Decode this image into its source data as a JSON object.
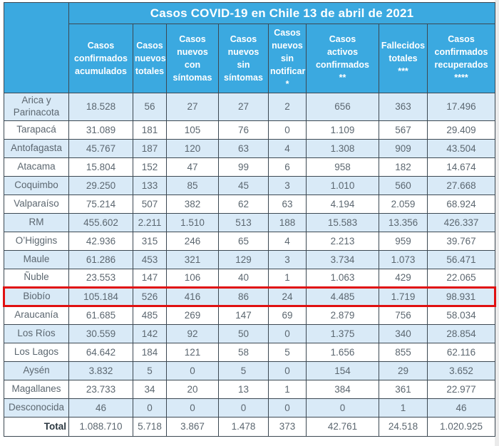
{
  "page": {
    "title": "Casos COVID-19 en Chile 13 de abril de 2021"
  },
  "chart_data": {
    "type": "table",
    "title": "Casos COVID-19 en Chile 13 de abril de 2021",
    "region_column_header": "",
    "columns": [
      "Casos\nconfirmados\nacumulados",
      "Casos\nnuevos\ntotales",
      "Casos\nnuevos\ncon\nsíntomas",
      "Casos\nnuevos\nsin\nsíntomas",
      "Casos\nnuevos\nsin\nnotificar\n*",
      "Casos\nactivos\nconfirmados\n**",
      "Fallecidos\ntotales\n***",
      "Casos\nconfirmados\nrecuperados\n****"
    ],
    "rows": [
      {
        "region": "Arica y Parinacota",
        "values": [
          "18.528",
          "56",
          "27",
          "27",
          "2",
          "656",
          "363",
          "17.496"
        ],
        "highlighted": false
      },
      {
        "region": "Tarapacá",
        "values": [
          "31.089",
          "181",
          "105",
          "76",
          "0",
          "1.109",
          "567",
          "29.409"
        ],
        "highlighted": false
      },
      {
        "region": "Antofagasta",
        "values": [
          "45.767",
          "187",
          "120",
          "63",
          "4",
          "1.308",
          "909",
          "43.504"
        ],
        "highlighted": false
      },
      {
        "region": "Atacama",
        "values": [
          "15.804",
          "152",
          "47",
          "99",
          "6",
          "958",
          "182",
          "14.674"
        ],
        "highlighted": false
      },
      {
        "region": "Coquimbo",
        "values": [
          "29.250",
          "133",
          "85",
          "45",
          "3",
          "1.010",
          "560",
          "27.668"
        ],
        "highlighted": false
      },
      {
        "region": "Valparaíso",
        "values": [
          "75.214",
          "507",
          "382",
          "62",
          "63",
          "4.194",
          "2.059",
          "68.924"
        ],
        "highlighted": false
      },
      {
        "region": "RM",
        "values": [
          "455.602",
          "2.211",
          "1.510",
          "513",
          "188",
          "15.583",
          "13.356",
          "426.337"
        ],
        "highlighted": false
      },
      {
        "region": "O’Higgins",
        "values": [
          "42.936",
          "315",
          "246",
          "65",
          "4",
          "2.213",
          "959",
          "39.767"
        ],
        "highlighted": false
      },
      {
        "region": "Maule",
        "values": [
          "61.286",
          "453",
          "321",
          "129",
          "3",
          "3.734",
          "1.073",
          "56.471"
        ],
        "highlighted": false
      },
      {
        "region": "Ñuble",
        "values": [
          "23.553",
          "147",
          "106",
          "40",
          "1",
          "1.063",
          "429",
          "22.065"
        ],
        "highlighted": false
      },
      {
        "region": "Biobío",
        "values": [
          "105.184",
          "526",
          "416",
          "86",
          "24",
          "4.485",
          "1.719",
          "98.931"
        ],
        "highlighted": true
      },
      {
        "region": "Araucanía",
        "values": [
          "61.685",
          "485",
          "269",
          "147",
          "69",
          "2.879",
          "756",
          "58.034"
        ],
        "highlighted": false
      },
      {
        "region": "Los Ríos",
        "values": [
          "30.559",
          "142",
          "92",
          "50",
          "0",
          "1.375",
          "340",
          "28.854"
        ],
        "highlighted": false
      },
      {
        "region": "Los Lagos",
        "values": [
          "64.642",
          "184",
          "121",
          "58",
          "5",
          "1.656",
          "855",
          "62.116"
        ],
        "highlighted": false
      },
      {
        "region": "Aysén",
        "values": [
          "3.832",
          "5",
          "0",
          "5",
          "0",
          "154",
          "29",
          "3.652"
        ],
        "highlighted": false
      },
      {
        "region": "Magallanes",
        "values": [
          "23.733",
          "34",
          "20",
          "13",
          "1",
          "384",
          "361",
          "22.977"
        ],
        "highlighted": false
      },
      {
        "region": "Desconocida",
        "values": [
          "46",
          "0",
          "0",
          "0",
          "0",
          "0",
          "1",
          "46"
        ],
        "highlighted": false
      }
    ],
    "total_row": {
      "label": "Total",
      "values": [
        "1.088.710",
        "5.718",
        "3.867",
        "1.478",
        "373",
        "42.761",
        "24.518",
        "1.020.925"
      ]
    }
  },
  "colors": {
    "header_blue": "#3BA9E0",
    "row_alt_blue": "#D9EAF7",
    "row_white": "#FFFFFF",
    "border": "#3C4852",
    "data_text": "#5C6770",
    "header_text": "#FFFFFF",
    "highlight_red": "#E01010",
    "total_text": "#2B3740"
  }
}
